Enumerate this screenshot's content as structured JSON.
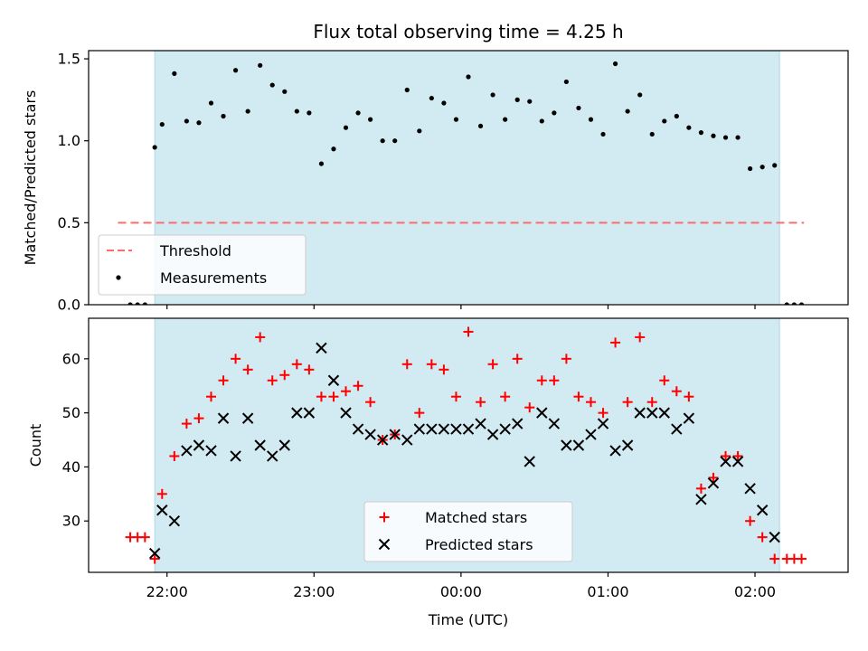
{
  "title": "Flux total observing time = 4.25 h",
  "xlabel": "Time (UTC)",
  "colors": {
    "shade": "#add8e6",
    "threshold": "#ff6b6b",
    "measurement": "#000000",
    "matched": "#ff0000",
    "predicted": "#000000"
  },
  "x_ticks": [
    {
      "t": 0,
      "label": "22:00"
    },
    {
      "t": 60,
      "label": "23:00"
    },
    {
      "t": 120,
      "label": "00:00"
    },
    {
      "t": 180,
      "label": "01:00"
    },
    {
      "t": 240,
      "label": "02:00"
    }
  ],
  "chart_data": [
    {
      "type": "scatter",
      "ylabel": "Matched/Predicted stars",
      "xlim": [
        "21:28",
        "02:38"
      ],
      "ylim": [
        0,
        1.55
      ],
      "y_ticks": [
        "0.0",
        "0.5",
        "1.0",
        "1.5"
      ],
      "observing_window": [
        "21:55",
        "02:10"
      ],
      "legend_position": "lower-left",
      "threshold": {
        "name": "Threshold",
        "value": 0.5,
        "x_range": [
          "21:40",
          "02:20"
        ]
      },
      "series": [
        {
          "name": "Measurements",
          "x": [
            "21:45",
            "21:48",
            "21:51",
            "21:55",
            "21:58",
            "22:03",
            "22:08",
            "22:13",
            "22:18",
            "22:23",
            "22:28",
            "22:33",
            "22:38",
            "22:43",
            "22:48",
            "22:53",
            "22:58",
            "23:03",
            "23:08",
            "23:13",
            "23:18",
            "23:23",
            "23:28",
            "23:33",
            "23:38",
            "23:43",
            "23:48",
            "23:53",
            "23:58",
            "00:03",
            "00:08",
            "00:13",
            "00:18",
            "00:23",
            "00:28",
            "00:33",
            "00:38",
            "00:43",
            "00:48",
            "00:53",
            "00:58",
            "01:03",
            "01:08",
            "01:13",
            "01:18",
            "01:23",
            "01:28",
            "01:33",
            "01:38",
            "01:43",
            "01:48",
            "01:53",
            "01:58",
            "02:03",
            "02:08",
            "02:13",
            "02:16",
            "02:19"
          ],
          "y": [
            0,
            0,
            0,
            0.96,
            1.1,
            1.41,
            1.12,
            1.11,
            1.23,
            1.15,
            1.43,
            1.18,
            1.46,
            1.34,
            1.3,
            1.18,
            1.17,
            0.86,
            0.95,
            1.08,
            1.17,
            1.13,
            1.0,
            1.0,
            1.31,
            1.06,
            1.26,
            1.23,
            1.13,
            1.39,
            1.09,
            1.28,
            1.13,
            1.25,
            1.24,
            1.12,
            1.17,
            1.36,
            1.2,
            1.13,
            1.04,
            1.47,
            1.18,
            1.28,
            1.04,
            1.12,
            1.15,
            1.08,
            1.05,
            1.03,
            1.02,
            1.02,
            0.83,
            0.84,
            0.85,
            0,
            0,
            0
          ]
        }
      ]
    },
    {
      "type": "scatter",
      "ylabel": "Count",
      "xlim": [
        "21:28",
        "02:38"
      ],
      "ylim": [
        20.5,
        67.5
      ],
      "y_ticks": [
        "30",
        "40",
        "50",
        "60"
      ],
      "observing_window": [
        "21:55",
        "02:10"
      ],
      "legend_position": "lower-center",
      "series": [
        {
          "name": "Matched stars",
          "marker": "+",
          "x": [
            "21:45",
            "21:48",
            "21:51",
            "21:55",
            "21:58",
            "22:03",
            "22:08",
            "22:13",
            "22:18",
            "22:23",
            "22:28",
            "22:33",
            "22:38",
            "22:43",
            "22:48",
            "22:53",
            "22:58",
            "23:03",
            "23:08",
            "23:13",
            "23:18",
            "23:23",
            "23:28",
            "23:33",
            "23:38",
            "23:43",
            "23:48",
            "23:53",
            "23:58",
            "00:03",
            "00:08",
            "00:13",
            "00:18",
            "00:23",
            "00:28",
            "00:33",
            "00:38",
            "00:43",
            "00:48",
            "00:53",
            "00:58",
            "01:03",
            "01:08",
            "01:13",
            "01:18",
            "01:23",
            "01:28",
            "01:33",
            "01:38",
            "01:43",
            "01:48",
            "01:53",
            "01:58",
            "02:03",
            "02:08",
            "02:13",
            "02:16",
            "02:19"
          ],
          "y": [
            27,
            27,
            27,
            23,
            35,
            42,
            48,
            49,
            53,
            56,
            60,
            58,
            64,
            56,
            57,
            59,
            58,
            53,
            53,
            54,
            55,
            52,
            45,
            46,
            59,
            50,
            59,
            58,
            53,
            65,
            52,
            59,
            53,
            60,
            51,
            56,
            56,
            60,
            53,
            52,
            50,
            63,
            52,
            64,
            52,
            56,
            54,
            53,
            36,
            38,
            42,
            42,
            30,
            27,
            23,
            23,
            23,
            23
          ]
        },
        {
          "name": "Predicted stars",
          "marker": "x",
          "x": [
            "21:55",
            "21:58",
            "22:03",
            "22:08",
            "22:13",
            "22:18",
            "22:23",
            "22:28",
            "22:33",
            "22:38",
            "22:43",
            "22:48",
            "22:53",
            "22:58",
            "23:03",
            "23:08",
            "23:13",
            "23:18",
            "23:23",
            "23:28",
            "23:33",
            "23:38",
            "23:43",
            "23:48",
            "23:53",
            "23:58",
            "00:03",
            "00:08",
            "00:13",
            "00:18",
            "00:23",
            "00:28",
            "00:33",
            "00:38",
            "00:43",
            "00:48",
            "00:53",
            "00:58",
            "01:03",
            "01:08",
            "01:13",
            "01:18",
            "01:23",
            "01:28",
            "01:33",
            "01:38",
            "01:43",
            "01:48",
            "01:53",
            "01:58",
            "02:03",
            "02:08"
          ],
          "y": [
            24,
            32,
            30,
            43,
            44,
            43,
            49,
            42,
            49,
            44,
            42,
            44,
            50,
            50,
            62,
            56,
            50,
            47,
            46,
            45,
            46,
            45,
            47,
            47,
            47,
            47,
            47,
            48,
            46,
            47,
            48,
            41,
            50,
            48,
            44,
            44,
            46,
            48,
            43,
            44,
            50,
            50,
            50,
            47,
            49,
            34,
            37,
            41,
            41,
            36,
            32,
            27
          ]
        }
      ]
    }
  ]
}
